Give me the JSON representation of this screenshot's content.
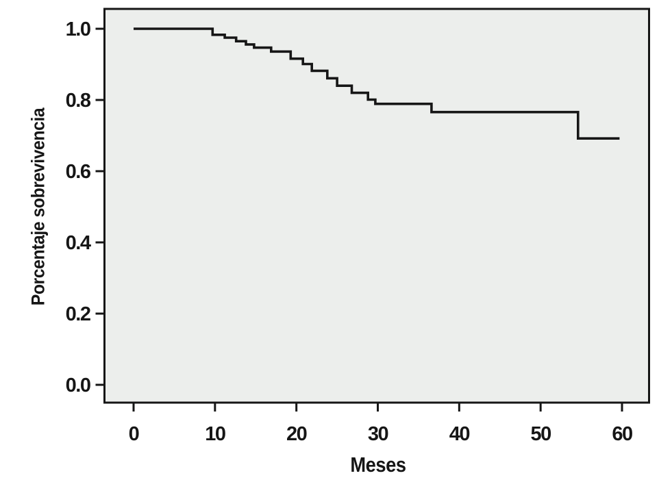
{
  "figure": {
    "background": "#ffffff",
    "plot_background": "#eceeec",
    "axis_color": "#161616",
    "line_color": "#161616"
  },
  "chart_data": {
    "type": "line",
    "subtype": "kaplan-meier-step",
    "title": "",
    "xlabel": "Meses",
    "ylabel": "Porcentaje sobrevivencia",
    "xlim": [
      0,
      60
    ],
    "ylim": [
      0.0,
      1.0
    ],
    "x_ticks": [
      "0",
      "10",
      "20",
      "30",
      "40",
      "50",
      "60"
    ],
    "y_ticks": [
      "0.0",
      "0.2",
      "0.4",
      "0.6",
      "0.8",
      "1.0"
    ],
    "grid": false,
    "legend": "none",
    "series": [
      {
        "step": true,
        "points": [
          [
            0.0,
            1.0
          ],
          [
            9.7,
            0.983
          ],
          [
            11.2,
            0.975
          ],
          [
            12.6,
            0.965
          ],
          [
            13.8,
            0.956
          ],
          [
            14.8,
            0.947
          ],
          [
            16.9,
            0.936
          ],
          [
            19.3,
            0.916
          ],
          [
            20.8,
            0.901
          ],
          [
            21.9,
            0.882
          ],
          [
            23.8,
            0.861
          ],
          [
            25.0,
            0.84
          ],
          [
            26.8,
            0.82
          ],
          [
            28.8,
            0.801
          ],
          [
            29.7,
            0.789
          ],
          [
            36.6,
            0.766
          ],
          [
            54.6,
            0.692
          ]
        ],
        "end_x": 59.7
      }
    ]
  }
}
